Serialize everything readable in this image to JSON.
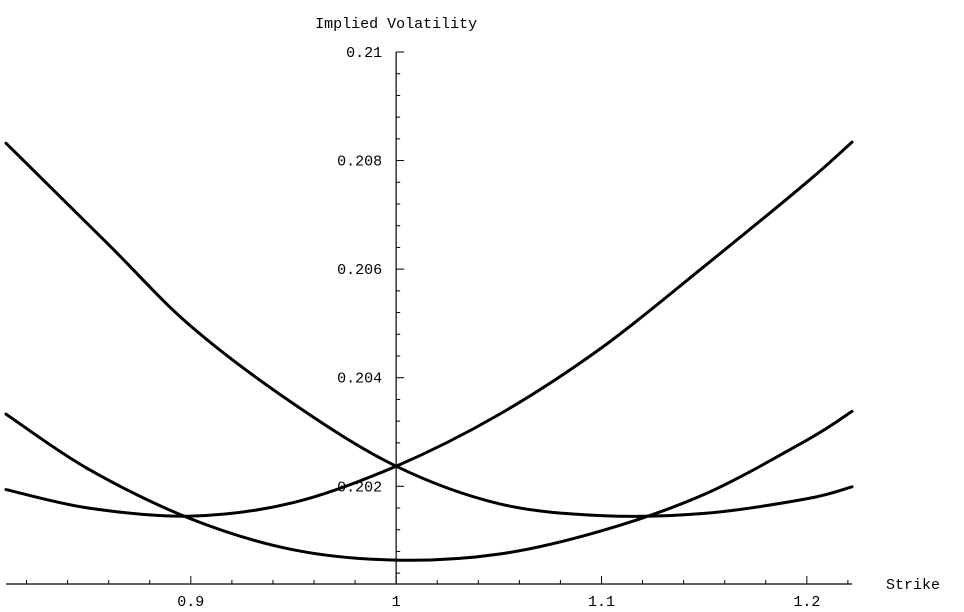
{
  "chart_data": {
    "type": "line",
    "title": "",
    "xlabel": "Strike",
    "ylabel": "Implied Volatility",
    "xlim": [
      0.81,
      1.222
    ],
    "ylim": [
      0.2002,
      0.21
    ],
    "x_axis_crossing_y": 0.2002,
    "y_axis_crossing_x": 1.0,
    "grid": false,
    "legend": "none",
    "line_color": "#000000",
    "x_ticks": {
      "major": [
        0.9,
        1.0,
        1.1,
        1.2
      ],
      "labels": [
        "0.9",
        "1",
        "1.1",
        "1.2"
      ],
      "minor_step": 0.02
    },
    "y_ticks": {
      "major": [
        0.202,
        0.204,
        0.206,
        0.208,
        0.21
      ],
      "labels": [
        "0.202",
        "0.204",
        "0.206",
        "0.208",
        "0.21"
      ],
      "minor_step": 0.0004
    },
    "series": [
      {
        "x": [
          0.81,
          0.86,
          0.9,
          0.95,
          1.0,
          1.05,
          1.1,
          1.15,
          1.2,
          1.222
        ],
        "y": [
          0.20832,
          0.20645,
          0.20495,
          0.20352,
          0.20237,
          0.20168,
          0.20146,
          0.2015,
          0.20177,
          0.20199
        ]
      },
      {
        "x": [
          0.81,
          0.85,
          0.9,
          0.95,
          1.0,
          1.05,
          1.1,
          1.15,
          1.2,
          1.222
        ],
        "y": [
          0.20194,
          0.2016,
          0.20145,
          0.2017,
          0.20237,
          0.20332,
          0.20455,
          0.20605,
          0.2076,
          0.20834
        ]
      },
      {
        "x": [
          0.81,
          0.85,
          0.9,
          0.95,
          1.0,
          1.05,
          1.1,
          1.15,
          1.2,
          1.222
        ],
        "y": [
          0.20333,
          0.20232,
          0.2014,
          0.20083,
          0.20064,
          0.20075,
          0.20118,
          0.20185,
          0.20285,
          0.20338
        ]
      }
    ]
  }
}
